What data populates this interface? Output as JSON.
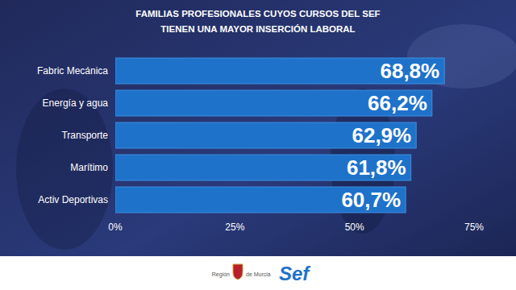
{
  "chart_data": {
    "type": "bar",
    "orientation": "horizontal",
    "title": [
      "FAMILIAS PROFESIONALES CUYOS CURSOS DEL SEF",
      "TIENEN UNA MAYOR INSERCIÓN LABORAL"
    ],
    "categories": [
      "Fabric Mecánica",
      "Energía y agua",
      "Transporte",
      "Marítimo",
      "Activ Deportivas"
    ],
    "values": [
      68.8,
      66.2,
      62.9,
      61.8,
      60.7
    ],
    "value_labels": [
      "68,8%",
      "66,2%",
      "62,9%",
      "61,8%",
      "60,7%"
    ],
    "color": "#1f72c9",
    "xlim": [
      0,
      75
    ],
    "xticks": [
      {
        "value": 0,
        "label": "0%"
      },
      {
        "value": 25,
        "label": "25%"
      },
      {
        "value": 50,
        "label": "50%"
      },
      {
        "value": 75,
        "label": "75%"
      }
    ],
    "grid": false,
    "data_labels": true,
    "tick_labels": "x"
  },
  "footer": {
    "logo_text": [
      "Región",
      "de Murcia"
    ],
    "brand": "Sef"
  }
}
